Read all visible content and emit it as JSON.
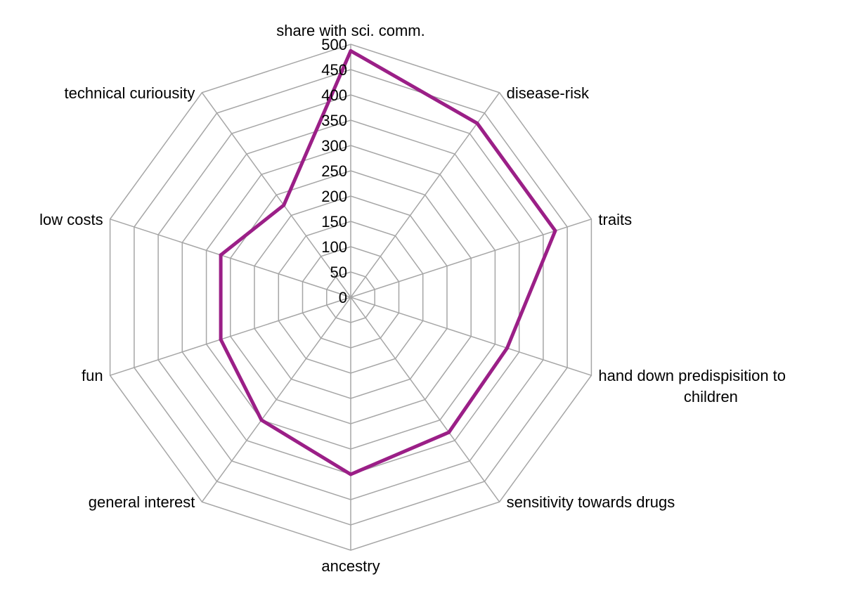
{
  "chart_data": {
    "type": "radar",
    "title": "",
    "categories": [
      "share with sci. comm.",
      "disease-risk",
      "traits",
      "hand down predispisition to children",
      "sensitivity towards drugs",
      "ancestry",
      "general interest",
      "fun",
      "low costs",
      "technical curiousity"
    ],
    "category_label_lines": [
      [
        "share with sci. comm."
      ],
      [
        "disease-risk"
      ],
      [
        "traits"
      ],
      [
        "hand down predispisition to",
        "children"
      ],
      [
        "sensitivity towards drugs"
      ],
      [
        "ancestry"
      ],
      [
        "general interest"
      ],
      [
        "fun"
      ],
      [
        "low costs"
      ],
      [
        "technical curiousity"
      ]
    ],
    "series": [
      {
        "values": [
          487,
          425,
          425,
          325,
          330,
          350,
          300,
          270,
          270,
          225
        ],
        "color": "#9b1f87"
      }
    ],
    "rlim": [
      0,
      500
    ],
    "ticks": [
      0,
      50,
      100,
      150,
      200,
      250,
      300,
      350,
      400,
      450,
      500
    ],
    "tick_labels": [
      "0",
      "50",
      "100",
      "150",
      "200",
      "250",
      "300",
      "350",
      "400",
      "450",
      "500"
    ],
    "grid": true,
    "grid_color": "#a6a6a6",
    "legend": "none"
  }
}
